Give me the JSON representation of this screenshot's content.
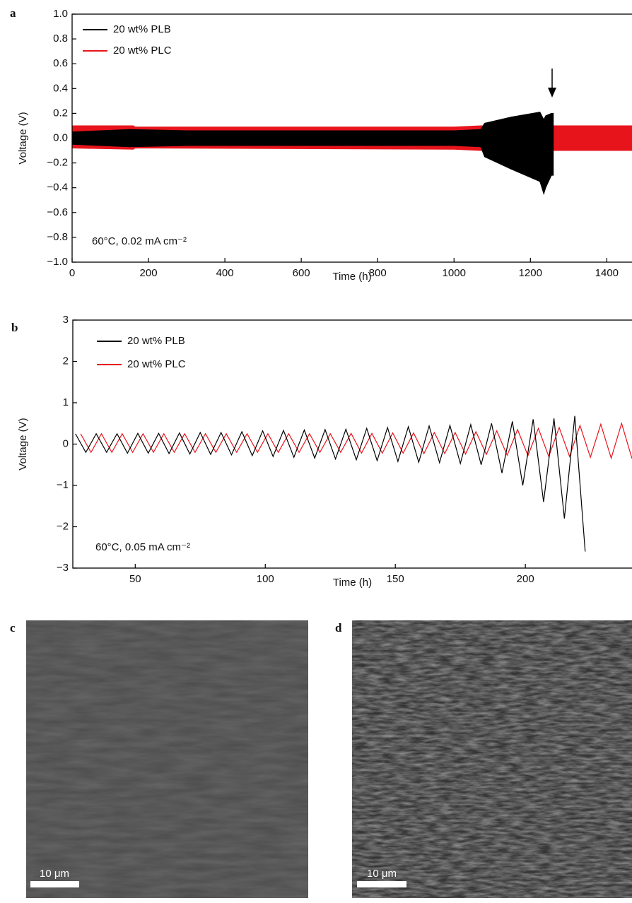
{
  "chart_data": [
    {
      "type": "band",
      "xlabel": "Time (h)",
      "ylabel": "Voltage (V)",
      "annotation": "60°C, 0.02 mA cm⁻²",
      "xlim": [
        0,
        1466
      ],
      "ylim": [
        -1,
        1
      ],
      "xticks": [
        0,
        200,
        400,
        600,
        800,
        1000,
        1200,
        1400
      ],
      "yticks": [
        {
          "value": 1,
          "label": "1.0"
        },
        0.8,
        0.6,
        0.4,
        0.2,
        {
          "value": 0,
          "label": "0.0"
        },
        {
          "value": -0.2,
          "label": "−0.2"
        },
        {
          "value": -0.4,
          "label": "−0.4"
        },
        {
          "value": -0.6,
          "label": "−0.6"
        },
        {
          "value": -0.8,
          "label": "−0.8"
        },
        {
          "value": -1,
          "label": "−1.0"
        }
      ],
      "series": [
        {
          "name": "20 wt% PLB",
          "color": "#000000",
          "x": [
            0,
            150,
            300,
            1000,
            1070,
            1080,
            1150,
            1225,
            1235,
            1240,
            1255,
            1260
          ],
          "high": [
            0.05,
            0.07,
            0.06,
            0.06,
            0.07,
            0.12,
            0.17,
            0.21,
            0.15,
            0.18,
            0.2,
            0.2
          ],
          "low": [
            -0.05,
            -0.07,
            -0.06,
            -0.06,
            -0.07,
            -0.15,
            -0.25,
            -0.35,
            -0.45,
            -0.4,
            -0.3,
            -0.3
          ]
        },
        {
          "name": "20 wt% PLC",
          "color": "#e8141b",
          "x": [
            0,
            160,
            165,
            1000,
            1070,
            1240,
            1466
          ],
          "high": [
            0.1,
            0.1,
            0.09,
            0.09,
            0.1,
            0.1,
            0.1
          ],
          "low": [
            -0.08,
            -0.09,
            -0.08,
            -0.09,
            -0.1,
            -0.1,
            -0.1
          ]
        }
      ]
    },
    {
      "type": "line",
      "xlabel": "Time (h)",
      "ylabel": "Voltage (V)",
      "annotation": "60°C, 0.05 mA cm⁻²",
      "xlim": [
        26,
        241
      ],
      "ylim": [
        -3,
        3
      ],
      "xticks": [
        50,
        100,
        150,
        200
      ],
      "yticks": [
        3,
        2,
        1,
        0,
        {
          "value": -1,
          "label": "−1"
        },
        {
          "value": -2,
          "label": "−2"
        },
        {
          "value": -3,
          "label": "−3"
        }
      ],
      "series": [
        {
          "name": "20 wt% PLB",
          "color": "#000000",
          "x": [
            27,
            31,
            35,
            39,
            43,
            47,
            51,
            55,
            59,
            63,
            67,
            71,
            75,
            79,
            83,
            87,
            91,
            95,
            99,
            103,
            107,
            111,
            115,
            119,
            123,
            127,
            131,
            135,
            139,
            143,
            147,
            151,
            155,
            159,
            163,
            167,
            171,
            175,
            179,
            183,
            187,
            191,
            195,
            199,
            203,
            207,
            211,
            215,
            219,
            223
          ],
          "values": [
            0.25,
            -0.2,
            0.25,
            -0.2,
            0.25,
            -0.22,
            0.26,
            -0.22,
            0.26,
            -0.23,
            0.27,
            -0.24,
            0.28,
            -0.25,
            0.28,
            -0.26,
            0.3,
            -0.28,
            0.32,
            -0.3,
            0.33,
            -0.32,
            0.34,
            -0.34,
            0.35,
            -0.36,
            0.36,
            -0.38,
            0.38,
            -0.4,
            0.4,
            -0.42,
            0.42,
            -0.44,
            0.44,
            -0.45,
            0.45,
            -0.47,
            0.47,
            -0.5,
            0.5,
            -0.7,
            0.55,
            -1.0,
            0.6,
            -1.4,
            0.62,
            -1.8,
            0.68,
            -2.6
          ]
        },
        {
          "name": "20 wt% PLC",
          "color": "#e8141b",
          "x": [
            29,
            33,
            37,
            41,
            45,
            49,
            53,
            57,
            61,
            65,
            69,
            73,
            77,
            81,
            85,
            89,
            93,
            97,
            101,
            105,
            109,
            113,
            117,
            121,
            125,
            129,
            133,
            137,
            141,
            145,
            149,
            153,
            157,
            161,
            165,
            169,
            173,
            177,
            181,
            185,
            189,
            193,
            197,
            201,
            205,
            209,
            213,
            217,
            221,
            225,
            229,
            233,
            237,
            241
          ],
          "values": [
            0.25,
            -0.2,
            0.25,
            -0.2,
            0.25,
            -0.2,
            0.25,
            -0.2,
            0.25,
            -0.2,
            0.25,
            -0.2,
            0.25,
            -0.2,
            0.25,
            -0.2,
            0.25,
            -0.2,
            0.25,
            -0.2,
            0.25,
            -0.2,
            0.25,
            -0.2,
            0.25,
            -0.2,
            0.26,
            -0.22,
            0.26,
            -0.22,
            0.27,
            -0.22,
            0.27,
            -0.23,
            0.28,
            -0.23,
            0.28,
            -0.24,
            0.3,
            -0.25,
            0.32,
            -0.27,
            0.35,
            -0.28,
            0.38,
            -0.3,
            0.4,
            -0.3,
            0.45,
            -0.32,
            0.48,
            -0.34,
            0.5,
            -0.35
          ]
        }
      ]
    }
  ],
  "panel_labels": [
    "a",
    "b",
    "c",
    "d"
  ],
  "images": [
    {
      "scale_bar": "10 μm"
    },
    {
      "scale_bar": "10 μm"
    }
  ]
}
